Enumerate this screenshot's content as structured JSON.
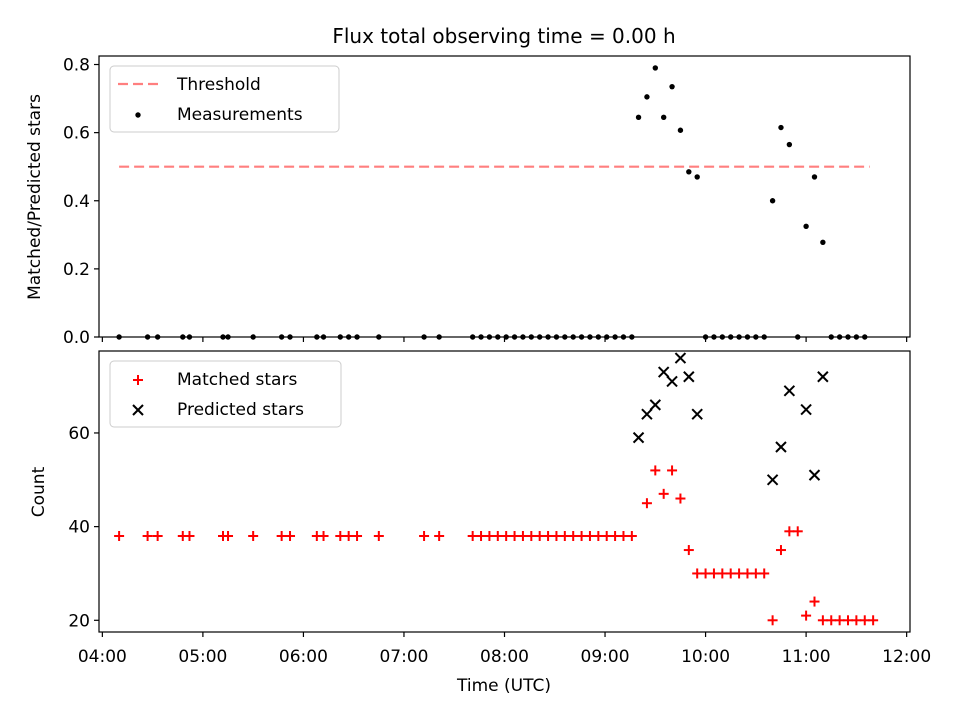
{
  "chart_data": [
    {
      "type": "scatter",
      "title": "Flux total observing time = 0.00 h",
      "xlabel": "",
      "ylabel": "Matched/Predicted stars",
      "xlim": [
        "03:58",
        "12:02"
      ],
      "ylim": [
        0,
        0.825
      ],
      "yticks": [
        0.0,
        0.2,
        0.4,
        0.6,
        0.8
      ],
      "ytick_labels": [
        "0.0",
        "0.2",
        "0.4",
        "0.6",
        "0.8"
      ],
      "legend": "top-left",
      "grid": false,
      "threshold": {
        "name": "Threshold",
        "y": 0.5,
        "x_start": "04:10",
        "x_end": "11:38",
        "color": "#ff7f7f",
        "style": "dashed"
      },
      "series": [
        {
          "name": "Measurements",
          "color": "#000000",
          "marker": "dot",
          "points": [
            [
              "04:10",
              0
            ],
            [
              "04:27",
              0
            ],
            [
              "04:33",
              0
            ],
            [
              "04:48",
              0
            ],
            [
              "04:52",
              0
            ],
            [
              "05:12",
              0
            ],
            [
              "05:15",
              0
            ],
            [
              "05:30",
              0
            ],
            [
              "05:47",
              0
            ],
            [
              "05:52",
              0
            ],
            [
              "06:08",
              0
            ],
            [
              "06:12",
              0
            ],
            [
              "06:22",
              0
            ],
            [
              "06:27",
              0
            ],
            [
              "06:32",
              0
            ],
            [
              "06:45",
              0
            ],
            [
              "07:12",
              0
            ],
            [
              "07:21",
              0
            ],
            [
              "07:41",
              0
            ],
            [
              "07:46",
              0
            ],
            [
              "07:51",
              0
            ],
            [
              "07:56",
              0
            ],
            [
              "08:01",
              0
            ],
            [
              "08:06",
              0
            ],
            [
              "08:11",
              0
            ],
            [
              "08:16",
              0
            ],
            [
              "08:21",
              0
            ],
            [
              "08:26",
              0
            ],
            [
              "08:31",
              0
            ],
            [
              "08:36",
              0
            ],
            [
              "08:41",
              0
            ],
            [
              "08:46",
              0
            ],
            [
              "08:51",
              0
            ],
            [
              "08:56",
              0
            ],
            [
              "09:01",
              0
            ],
            [
              "09:06",
              0
            ],
            [
              "09:11",
              0
            ],
            [
              "09:16",
              0
            ],
            [
              "09:20",
              0.645
            ],
            [
              "09:25",
              0.705
            ],
            [
              "09:30",
              0.79
            ],
            [
              "09:35",
              0.645
            ],
            [
              "09:40",
              0.735
            ],
            [
              "09:45",
              0.607
            ],
            [
              "09:50",
              0.485
            ],
            [
              "09:55",
              0.47
            ],
            [
              "10:00",
              0
            ],
            [
              "10:05",
              0
            ],
            [
              "10:10",
              0
            ],
            [
              "10:15",
              0
            ],
            [
              "10:20",
              0
            ],
            [
              "10:25",
              0
            ],
            [
              "10:30",
              0
            ],
            [
              "10:35",
              0
            ],
            [
              "10:40",
              0.4
            ],
            [
              "10:45",
              0.615
            ],
            [
              "10:50",
              0.565
            ],
            [
              "10:55",
              0
            ],
            [
              "11:00",
              0.325
            ],
            [
              "11:05",
              0.47
            ],
            [
              "11:10",
              0.278
            ],
            [
              "11:15",
              0
            ],
            [
              "11:20",
              0
            ],
            [
              "11:25",
              0
            ],
            [
              "11:30",
              0
            ],
            [
              "11:35",
              0
            ]
          ]
        }
      ]
    },
    {
      "type": "scatter",
      "title": "",
      "xlabel": "Time (UTC)",
      "ylabel": "Count",
      "xlim": [
        "03:58",
        "12:02"
      ],
      "ylim": [
        17.5,
        77.5
      ],
      "yticks": [
        20,
        40,
        60
      ],
      "ytick_labels": [
        "20",
        "40",
        "60"
      ],
      "xticks": [
        "04:00",
        "05:00",
        "06:00",
        "07:00",
        "08:00",
        "09:00",
        "10:00",
        "11:00",
        "12:00"
      ],
      "xtick_labels": [
        "04:00",
        "05:00",
        "06:00",
        "07:00",
        "08:00",
        "09:00",
        "10:00",
        "11:00",
        "12:00"
      ],
      "legend": "top-left",
      "grid": false,
      "series": [
        {
          "name": "Matched stars",
          "color": "#ff0000",
          "marker": "plus",
          "points": [
            [
              "04:10",
              38
            ],
            [
              "04:27",
              38
            ],
            [
              "04:33",
              38
            ],
            [
              "04:48",
              38
            ],
            [
              "04:52",
              38
            ],
            [
              "05:12",
              38
            ],
            [
              "05:15",
              38
            ],
            [
              "05:30",
              38
            ],
            [
              "05:47",
              38
            ],
            [
              "05:52",
              38
            ],
            [
              "06:08",
              38
            ],
            [
              "06:12",
              38
            ],
            [
              "06:22",
              38
            ],
            [
              "06:27",
              38
            ],
            [
              "06:32",
              38
            ],
            [
              "06:45",
              38
            ],
            [
              "07:12",
              38
            ],
            [
              "07:21",
              38
            ],
            [
              "07:41",
              38
            ],
            [
              "07:46",
              38
            ],
            [
              "07:51",
              38
            ],
            [
              "07:56",
              38
            ],
            [
              "08:01",
              38
            ],
            [
              "08:06",
              38
            ],
            [
              "08:11",
              38
            ],
            [
              "08:16",
              38
            ],
            [
              "08:21",
              38
            ],
            [
              "08:26",
              38
            ],
            [
              "08:31",
              38
            ],
            [
              "08:36",
              38
            ],
            [
              "08:41",
              38
            ],
            [
              "08:46",
              38
            ],
            [
              "08:51",
              38
            ],
            [
              "08:56",
              38
            ],
            [
              "09:01",
              38
            ],
            [
              "09:06",
              38
            ],
            [
              "09:11",
              38
            ],
            [
              "09:16",
              38
            ],
            [
              "09:25",
              45
            ],
            [
              "09:30",
              52
            ],
            [
              "09:35",
              47
            ],
            [
              "09:40",
              52
            ],
            [
              "09:45",
              46
            ],
            [
              "09:50",
              35
            ],
            [
              "09:55",
              30
            ],
            [
              "10:00",
              30
            ],
            [
              "10:05",
              30
            ],
            [
              "10:10",
              30
            ],
            [
              "10:15",
              30
            ],
            [
              "10:20",
              30
            ],
            [
              "10:25",
              30
            ],
            [
              "10:30",
              30
            ],
            [
              "10:35",
              30
            ],
            [
              "10:40",
              20
            ],
            [
              "10:45",
              35
            ],
            [
              "10:50",
              39
            ],
            [
              "10:55",
              39
            ],
            [
              "11:00",
              21
            ],
            [
              "11:05",
              24
            ],
            [
              "11:10",
              20
            ],
            [
              "11:15",
              20
            ],
            [
              "11:20",
              20
            ],
            [
              "11:25",
              20
            ],
            [
              "11:30",
              20
            ],
            [
              "11:35",
              20
            ],
            [
              "11:40",
              20
            ]
          ]
        },
        {
          "name": "Predicted stars",
          "color": "#000000",
          "marker": "x",
          "points": [
            [
              "09:20",
              59
            ],
            [
              "09:25",
              64
            ],
            [
              "09:30",
              66
            ],
            [
              "09:35",
              73
            ],
            [
              "09:40",
              71
            ],
            [
              "09:45",
              76
            ],
            [
              "09:50",
              72
            ],
            [
              "09:55",
              64
            ],
            [
              "10:40",
              50
            ],
            [
              "10:45",
              57
            ],
            [
              "10:50",
              69
            ],
            [
              "11:00",
              65
            ],
            [
              "11:05",
              51
            ],
            [
              "11:10",
              72
            ]
          ]
        }
      ]
    }
  ]
}
